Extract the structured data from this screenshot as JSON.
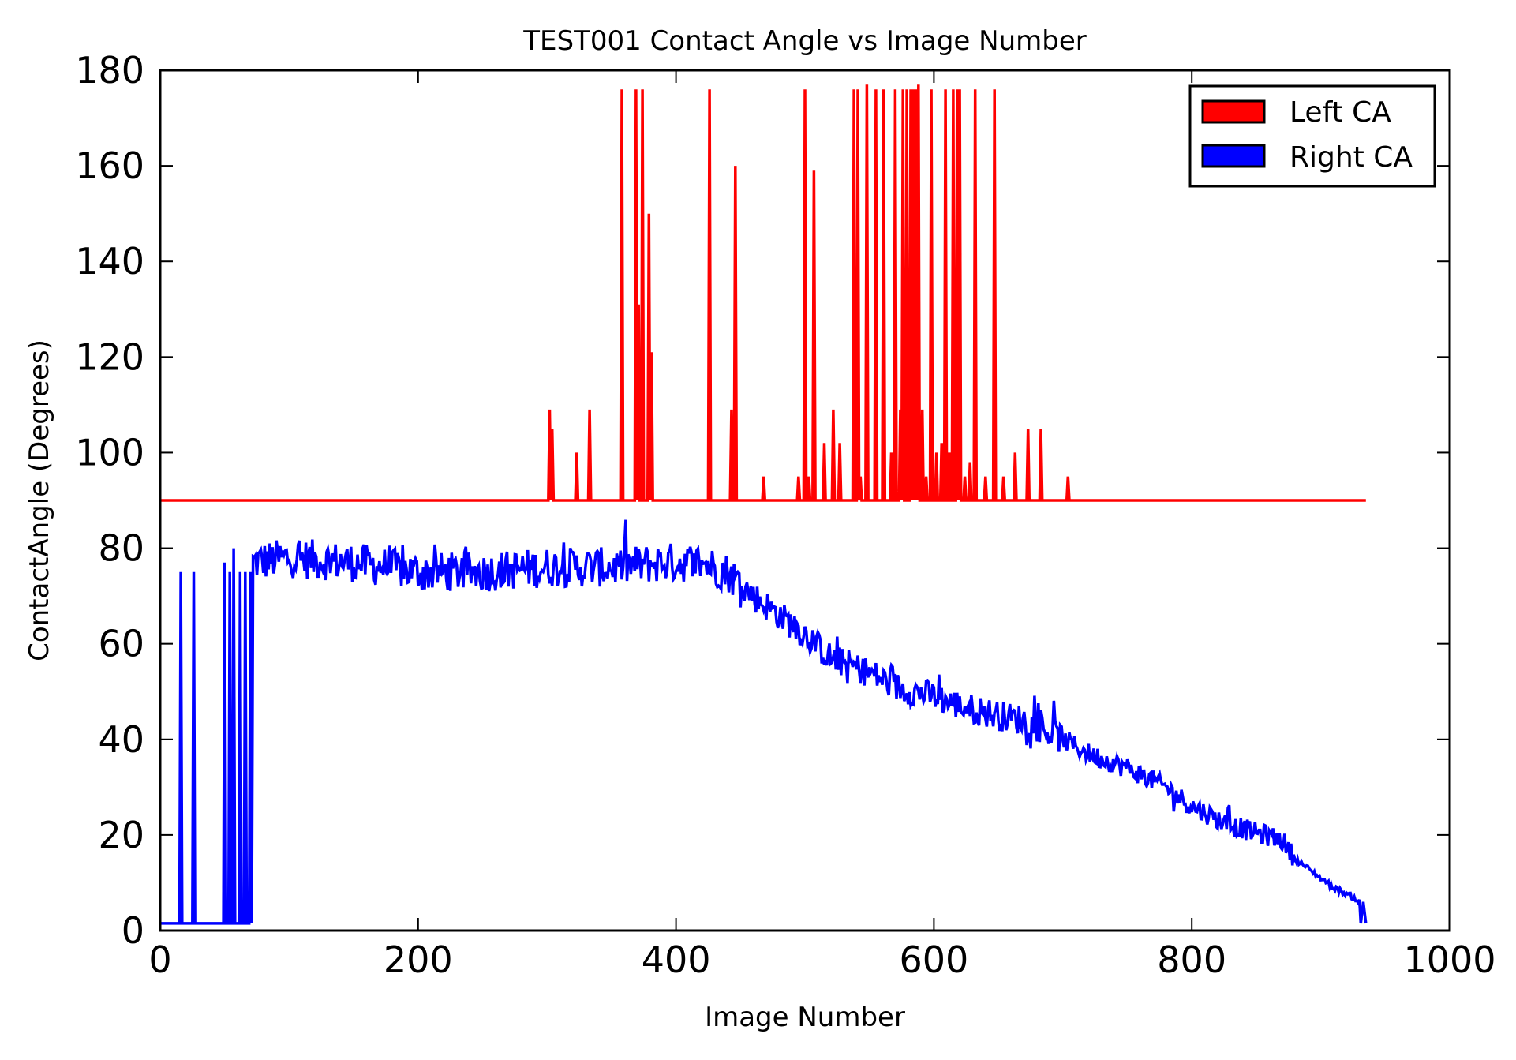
{
  "chart_data": {
    "type": "line",
    "title": "TEST001 Contact Angle vs Image Number",
    "xlabel": "Image Number",
    "ylabel": "ContactAngle (Degrees)",
    "xlim": [
      0,
      1000
    ],
    "ylim": [
      0,
      180
    ],
    "xticks": [
      "0",
      "200",
      "400",
      "600",
      "800",
      "1000"
    ],
    "yticks": [
      "0",
      "20",
      "40",
      "60",
      "80",
      "100",
      "120",
      "140",
      "160",
      "180"
    ],
    "grid": false,
    "legend_position": "top-right",
    "series": [
      {
        "name": "Left CA",
        "color": "#ff0000",
        "baseline": 90,
        "x_range": [
          0,
          935
        ],
        "spikes": [
          [
            302,
            109
          ],
          [
            304,
            105
          ],
          [
            323,
            100
          ],
          [
            333,
            109
          ],
          [
            358,
            176
          ],
          [
            369,
            176
          ],
          [
            371,
            131
          ],
          [
            374,
            176
          ],
          [
            379,
            150
          ],
          [
            381,
            121
          ],
          [
            426,
            176
          ],
          [
            443,
            109
          ],
          [
            446,
            160
          ],
          [
            468,
            95
          ],
          [
            495,
            95
          ],
          [
            500,
            176
          ],
          [
            503,
            95
          ],
          [
            507,
            159
          ],
          [
            515,
            102
          ],
          [
            522,
            109
          ],
          [
            527,
            102
          ],
          [
            538,
            176
          ],
          [
            541,
            176
          ],
          [
            543,
            95
          ],
          [
            548,
            177
          ],
          [
            555,
            176
          ],
          [
            561,
            176
          ],
          [
            567,
            100
          ],
          [
            570,
            176
          ],
          [
            574,
            109
          ],
          [
            576,
            176
          ],
          [
            579,
            176
          ],
          [
            582,
            176
          ],
          [
            584,
            176
          ],
          [
            586,
            176
          ],
          [
            588,
            177
          ],
          [
            591,
            109
          ],
          [
            594,
            95
          ],
          [
            598,
            176
          ],
          [
            602,
            100
          ],
          [
            606,
            102
          ],
          [
            609,
            176
          ],
          [
            612,
            100
          ],
          [
            615,
            176
          ],
          [
            618,
            176
          ],
          [
            620,
            176
          ],
          [
            624,
            95
          ],
          [
            628,
            98
          ],
          [
            632,
            176
          ],
          [
            640,
            95
          ],
          [
            647,
            176
          ],
          [
            654,
            95
          ],
          [
            663,
            100
          ],
          [
            673,
            105
          ],
          [
            683,
            105
          ],
          [
            704,
            95
          ]
        ]
      },
      {
        "name": "Right CA",
        "color": "#0000ff",
        "drop_value": 1.5,
        "drop_spikes": [
          [
            16,
            75
          ],
          [
            26,
            75
          ],
          [
            50,
            77
          ],
          [
            54,
            75
          ],
          [
            57,
            80
          ],
          [
            62,
            75
          ],
          [
            66,
            75
          ],
          [
            70,
            75
          ]
        ],
        "trend": [
          [
            72,
            77
          ],
          [
            100,
            78
          ],
          [
            150,
            77
          ],
          [
            200,
            75
          ],
          [
            250,
            75
          ],
          [
            300,
            76
          ],
          [
            350,
            76
          ],
          [
            390,
            77
          ],
          [
            420,
            77
          ],
          [
            440,
            75
          ],
          [
            460,
            70
          ],
          [
            480,
            66
          ],
          [
            500,
            62
          ],
          [
            520,
            57
          ],
          [
            550,
            54
          ],
          [
            570,
            51
          ],
          [
            600,
            49
          ],
          [
            620,
            47
          ],
          [
            650,
            45
          ],
          [
            670,
            44
          ],
          [
            700,
            40
          ],
          [
            720,
            37
          ],
          [
            750,
            34
          ],
          [
            780,
            30
          ],
          [
            800,
            26
          ],
          [
            830,
            22
          ],
          [
            870,
            19
          ],
          [
            880,
            15
          ],
          [
            910,
            9
          ],
          [
            925,
            7
          ],
          [
            930,
            6
          ]
        ],
        "end_drop": [
          [
            931,
            1.5
          ],
          [
            933,
            6
          ],
          [
            935,
            1.5
          ]
        ]
      }
    ]
  }
}
